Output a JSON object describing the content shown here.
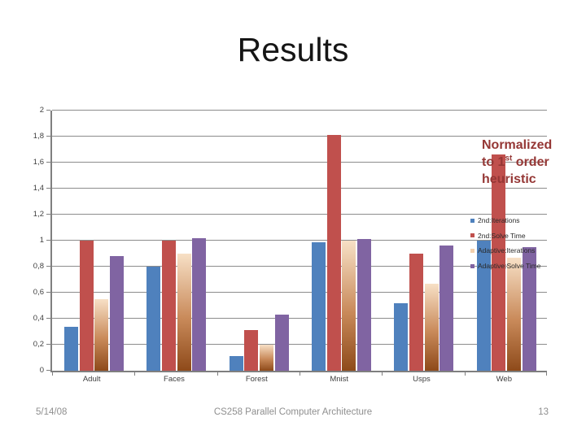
{
  "slide": {
    "title": "Results",
    "background": "#ffffff",
    "footer": {
      "date": "5/14/08",
      "course": "CS258 Parallel Computer Architecture",
      "page_number": "13"
    }
  },
  "annotation": {
    "line1": "Normalized",
    "line2_pre": "to 1",
    "line2_sup": "st",
    "line2_post": " order",
    "line3": "heuristic",
    "color": "#953735"
  },
  "chart_data": {
    "type": "bar",
    "title": "",
    "xlabel": "",
    "ylabel": "",
    "categories": [
      "Adult",
      "Faces",
      "Forest",
      "Mnist",
      "Usps",
      "Web"
    ],
    "series": [
      {
        "name": "2nd:Iterations",
        "color": "#4f81bd",
        "values": [
          0.34,
          0.8,
          0.11,
          0.99,
          0.52,
          1.0
        ]
      },
      {
        "name": "2nd:Solve Time",
        "color": "#c0504d",
        "values": [
          1.0,
          1.0,
          0.31,
          1.81,
          0.9,
          1.66
        ]
      },
      {
        "name": "Adaptive:Iterations",
        "color": "#f2d0ae",
        "gradient": [
          "#f7e0c6",
          "#c98a5a",
          "#8e4a1a"
        ],
        "values": [
          0.55,
          0.9,
          0.2,
          1.0,
          0.67,
          0.87
        ]
      },
      {
        "name": "Adaptive:Solve Time",
        "color": "#8064a2",
        "values": [
          0.88,
          1.02,
          0.43,
          1.01,
          0.96,
          0.95
        ]
      }
    ],
    "ylim": [
      0,
      2
    ],
    "ytick_step": 0.2,
    "ytick_labels": [
      "0",
      "0,2",
      "0,4",
      "0,6",
      "0,8",
      "1",
      "1,2",
      "1,4",
      "1,6",
      "1,8",
      "2"
    ],
    "grid": true,
    "gridline_color": "#8c8c8c",
    "axis_color": "#7f7f7f",
    "legend_position": "right-inside-over-last-category"
  }
}
